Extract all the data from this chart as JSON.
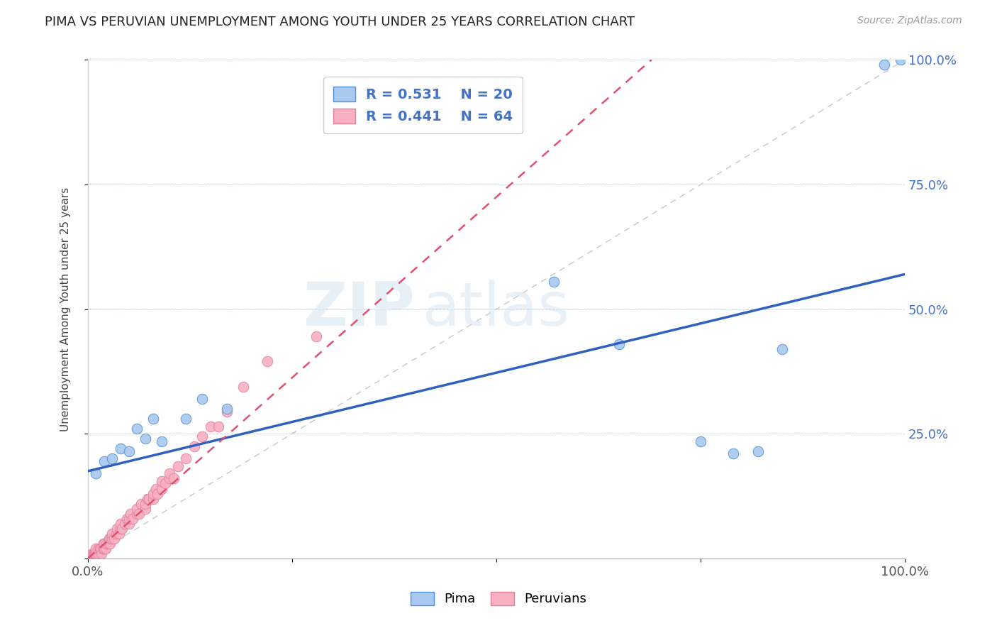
{
  "title": "PIMA VS PERUVIAN UNEMPLOYMENT AMONG YOUTH UNDER 25 YEARS CORRELATION CHART",
  "source_text": "Source: ZipAtlas.com",
  "ylabel": "Unemployment Among Youth under 25 years",
  "xlim": [
    0.0,
    1.0
  ],
  "ylim": [
    0.0,
    1.0
  ],
  "pima_color": "#a8c8f0",
  "peruvian_color": "#f8b0c0",
  "pima_line_color": "#3060c0",
  "peruvian_line_color": "#e05070",
  "ref_line_color": "#c8c8c8",
  "pima_R": 0.531,
  "pima_N": 20,
  "peruvian_R": 0.441,
  "peruvian_N": 64,
  "watermark_zip": "ZIP",
  "watermark_atlas": "atlas",
  "legend_color": "#4472c4",
  "pima_marker_edge": "#5090d8",
  "peruvian_marker_edge": "#e080a0",
  "pima_line_intercept": 0.175,
  "pima_line_slope": 0.395,
  "peruvian_line_intercept": 0.0,
  "peruvian_line_slope": 1.45,
  "pima_x": [
    0.01,
    0.02,
    0.03,
    0.04,
    0.05,
    0.06,
    0.07,
    0.08,
    0.09,
    0.12,
    0.14,
    0.17,
    0.57,
    0.65,
    0.75,
    0.79,
    0.82,
    0.85,
    0.975,
    0.995
  ],
  "pima_y": [
    0.17,
    0.195,
    0.2,
    0.22,
    0.215,
    0.26,
    0.24,
    0.28,
    0.235,
    0.28,
    0.32,
    0.3,
    0.555,
    0.43,
    0.235,
    0.21,
    0.215,
    0.42,
    0.99,
    1.0
  ],
  "peruvian_x": [
    0.005,
    0.007,
    0.008,
    0.009,
    0.01,
    0.01,
    0.012,
    0.013,
    0.015,
    0.016,
    0.017,
    0.018,
    0.019,
    0.02,
    0.02,
    0.022,
    0.023,
    0.025,
    0.026,
    0.027,
    0.028,
    0.03,
    0.03,
    0.032,
    0.035,
    0.036,
    0.038,
    0.04,
    0.04,
    0.042,
    0.045,
    0.048,
    0.05,
    0.05,
    0.052,
    0.055,
    0.06,
    0.06,
    0.063,
    0.065,
    0.07,
    0.07,
    0.073,
    0.075,
    0.08,
    0.08,
    0.083,
    0.085,
    0.09,
    0.09,
    0.095,
    0.1,
    0.1,
    0.105,
    0.11,
    0.12,
    0.13,
    0.14,
    0.15,
    0.16,
    0.17,
    0.19,
    0.22,
    0.28
  ],
  "peruvian_y": [
    0.01,
    0.01,
    0.01,
    0.01,
    0.01,
    0.02,
    0.01,
    0.02,
    0.02,
    0.02,
    0.01,
    0.02,
    0.03,
    0.02,
    0.03,
    0.02,
    0.03,
    0.03,
    0.04,
    0.03,
    0.04,
    0.04,
    0.05,
    0.04,
    0.05,
    0.06,
    0.05,
    0.06,
    0.07,
    0.06,
    0.07,
    0.08,
    0.07,
    0.08,
    0.09,
    0.08,
    0.09,
    0.1,
    0.09,
    0.11,
    0.1,
    0.11,
    0.12,
    0.12,
    0.12,
    0.13,
    0.14,
    0.13,
    0.14,
    0.155,
    0.15,
    0.16,
    0.17,
    0.16,
    0.185,
    0.2,
    0.225,
    0.245,
    0.265,
    0.265,
    0.295,
    0.345,
    0.395,
    0.445
  ]
}
